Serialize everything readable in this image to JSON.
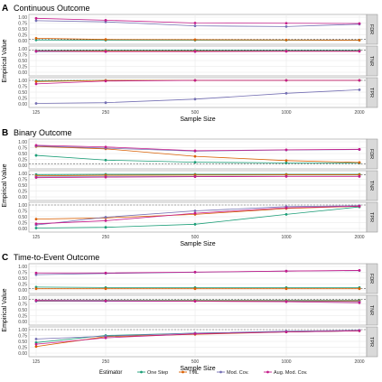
{
  "figure": {
    "x_ticks": [
      "125",
      "250",
      "500",
      "1000",
      "2000"
    ],
    "x_label": "Sample Size",
    "y_label": "Empirical Value",
    "y_ticks": [
      "0.00",
      "0.25",
      "0.50",
      "0.75",
      "1.00"
    ],
    "legend_title": "Estimator",
    "legend_items": [
      "One Step",
      "TML",
      "Mod. Cov.",
      "Aug. Mod. Cov."
    ],
    "colors": {
      "One Step": "#1b9e77",
      "TML": "#d95f02",
      "Mod. Cov.": "#7570b3",
      "Aug. Mod. Cov.": "#c51b8a"
    },
    "reference_lines": {
      "FDR": 0.05,
      "TNR": 0.95,
      "TPR": 1.0
    }
  },
  "chart_data": [
    {
      "type": "line",
      "panel_letter": "A",
      "title": "Continuous Outcome",
      "x": [
        125,
        250,
        500,
        1000,
        2000
      ],
      "ylim": [
        0,
        1
      ],
      "grid": true,
      "legend": "bottom",
      "facets": [
        {
          "label": "FDR",
          "series": [
            {
              "name": "One Step",
              "values": [
                0.03,
                0.02,
                0.02,
                0.02,
                0.02
              ]
            },
            {
              "name": "TML",
              "values": [
                0.1,
                0.05,
                0.04,
                0.03,
                0.02
              ]
            },
            {
              "name": "Mod. Cov.",
              "values": [
                0.85,
                0.8,
                0.63,
                0.6,
                0.7
              ]
            },
            {
              "name": "Aug. Mod. Cov.",
              "values": [
                0.95,
                0.87,
                0.75,
                0.74,
                0.73
              ]
            }
          ]
        },
        {
          "label": "TNR",
          "series": [
            {
              "name": "One Step",
              "values": [
                0.92,
                0.93,
                0.93,
                0.93,
                0.93
              ]
            },
            {
              "name": "TML",
              "values": [
                0.9,
                0.91,
                0.91,
                0.91,
                0.91
              ]
            },
            {
              "name": "Mod. Cov.",
              "values": [
                0.88,
                0.88,
                0.89,
                0.9,
                0.9
              ]
            },
            {
              "name": "Aug. Mod. Cov.",
              "values": [
                0.9,
                0.88,
                0.88,
                0.89,
                0.89
              ]
            }
          ]
        },
        {
          "label": "TPR",
          "series": [
            {
              "name": "One Step",
              "values": [
                0.98,
                1.0,
                1.0,
                1.0,
                1.0
              ]
            },
            {
              "name": "TML",
              "values": [
                0.95,
                1.0,
                1.0,
                1.0,
                1.0
              ]
            },
            {
              "name": "Mod. Cov.",
              "values": [
                0.02,
                0.05,
                0.2,
                0.45,
                0.6
              ]
            },
            {
              "name": "Aug. Mod. Cov.",
              "values": [
                0.85,
                0.97,
                1.0,
                1.0,
                1.0
              ]
            }
          ]
        }
      ]
    },
    {
      "type": "line",
      "panel_letter": "B",
      "title": "Binary Outcome",
      "x": [
        125,
        250,
        500,
        1000,
        2000
      ],
      "ylim": [
        0,
        1
      ],
      "grid": true,
      "legend": "bottom",
      "facets": [
        {
          "label": "FDR",
          "series": [
            {
              "name": "One Step",
              "values": [
                0.42,
                0.22,
                0.13,
                0.1,
                0.1
              ]
            },
            {
              "name": "TML",
              "values": [
                0.8,
                0.7,
                0.38,
                0.2,
                0.12
              ]
            },
            {
              "name": "Mod. Cov.",
              "values": [
                0.82,
                0.73,
                0.6,
                0.65,
                0.67
              ]
            },
            {
              "name": "Aug. Mod. Cov.",
              "values": [
                0.85,
                0.78,
                0.62,
                0.66,
                0.68
              ]
            }
          ]
        },
        {
          "label": "TNR",
          "series": [
            {
              "name": "One Step",
              "values": [
                0.95,
                0.96,
                0.96,
                0.96,
                0.96
              ]
            },
            {
              "name": "TML",
              "values": [
                0.9,
                0.92,
                0.93,
                0.94,
                0.94
              ]
            },
            {
              "name": "Mod. Cov.",
              "values": [
                0.85,
                0.86,
                0.87,
                0.88,
                0.88
              ]
            },
            {
              "name": "Aug. Mod. Cov.",
              "values": [
                0.82,
                0.84,
                0.86,
                0.87,
                0.87
              ]
            }
          ]
        },
        {
          "label": "TPR",
          "series": [
            {
              "name": "One Step",
              "values": [
                0.02,
                0.05,
                0.18,
                0.6,
                0.92
              ]
            },
            {
              "name": "TML",
              "values": [
                0.4,
                0.45,
                0.6,
                0.85,
                0.95
              ]
            },
            {
              "name": "Mod. Cov.",
              "values": [
                0.15,
                0.48,
                0.75,
                0.93,
                0.97
              ]
            },
            {
              "name": "Aug. Mod. Cov.",
              "values": [
                0.2,
                0.33,
                0.65,
                0.88,
                0.95
              ]
            }
          ]
        }
      ]
    },
    {
      "type": "line",
      "panel_letter": "C",
      "title": "Time-to-Event Outcome",
      "x": [
        125,
        250,
        500,
        1000,
        2000
      ],
      "ylim": [
        0,
        1
      ],
      "grid": true,
      "legend": "bottom",
      "facets": [
        {
          "label": "FDR",
          "series": [
            {
              "name": "One Step",
              "values": [
                0.12,
                0.1,
                0.1,
                0.1,
                0.1
              ]
            },
            {
              "name": "TML",
              "values": [
                0.05,
                0.05,
                0.05,
                0.05,
                0.05
              ]
            },
            {
              "name": "Mod. Cov.",
              "values": [
                0.65,
                0.7,
                0.75,
                0.8,
                0.82
              ]
            },
            {
              "name": "Aug. Mod. Cov.",
              "values": [
                0.72,
                0.72,
                0.76,
                0.8,
                0.83
              ]
            }
          ]
        },
        {
          "label": "TNR",
          "series": [
            {
              "name": "One Step",
              "values": [
                0.9,
                0.9,
                0.9,
                0.9,
                0.9
              ]
            },
            {
              "name": "TML",
              "values": [
                0.88,
                0.88,
                0.88,
                0.88,
                0.88
              ]
            },
            {
              "name": "Mod. Cov.",
              "values": [
                0.86,
                0.86,
                0.86,
                0.86,
                0.85
              ]
            },
            {
              "name": "Aug. Mod. Cov.",
              "values": [
                0.9,
                0.88,
                0.86,
                0.84,
                0.8
              ]
            }
          ]
        },
        {
          "label": "TPR",
          "series": [
            {
              "name": "One Step",
              "values": [
                0.45,
                0.75,
                0.85,
                0.9,
                0.95
              ]
            },
            {
              "name": "TML",
              "values": [
                0.28,
                0.7,
                0.8,
                0.9,
                0.95
              ]
            },
            {
              "name": "Mod. Cov.",
              "values": [
                0.6,
                0.72,
                0.85,
                0.93,
                0.97
              ]
            },
            {
              "name": "Aug. Mod. Cov.",
              "values": [
                0.38,
                0.65,
                0.82,
                0.9,
                0.95
              ]
            }
          ]
        }
      ]
    }
  ]
}
